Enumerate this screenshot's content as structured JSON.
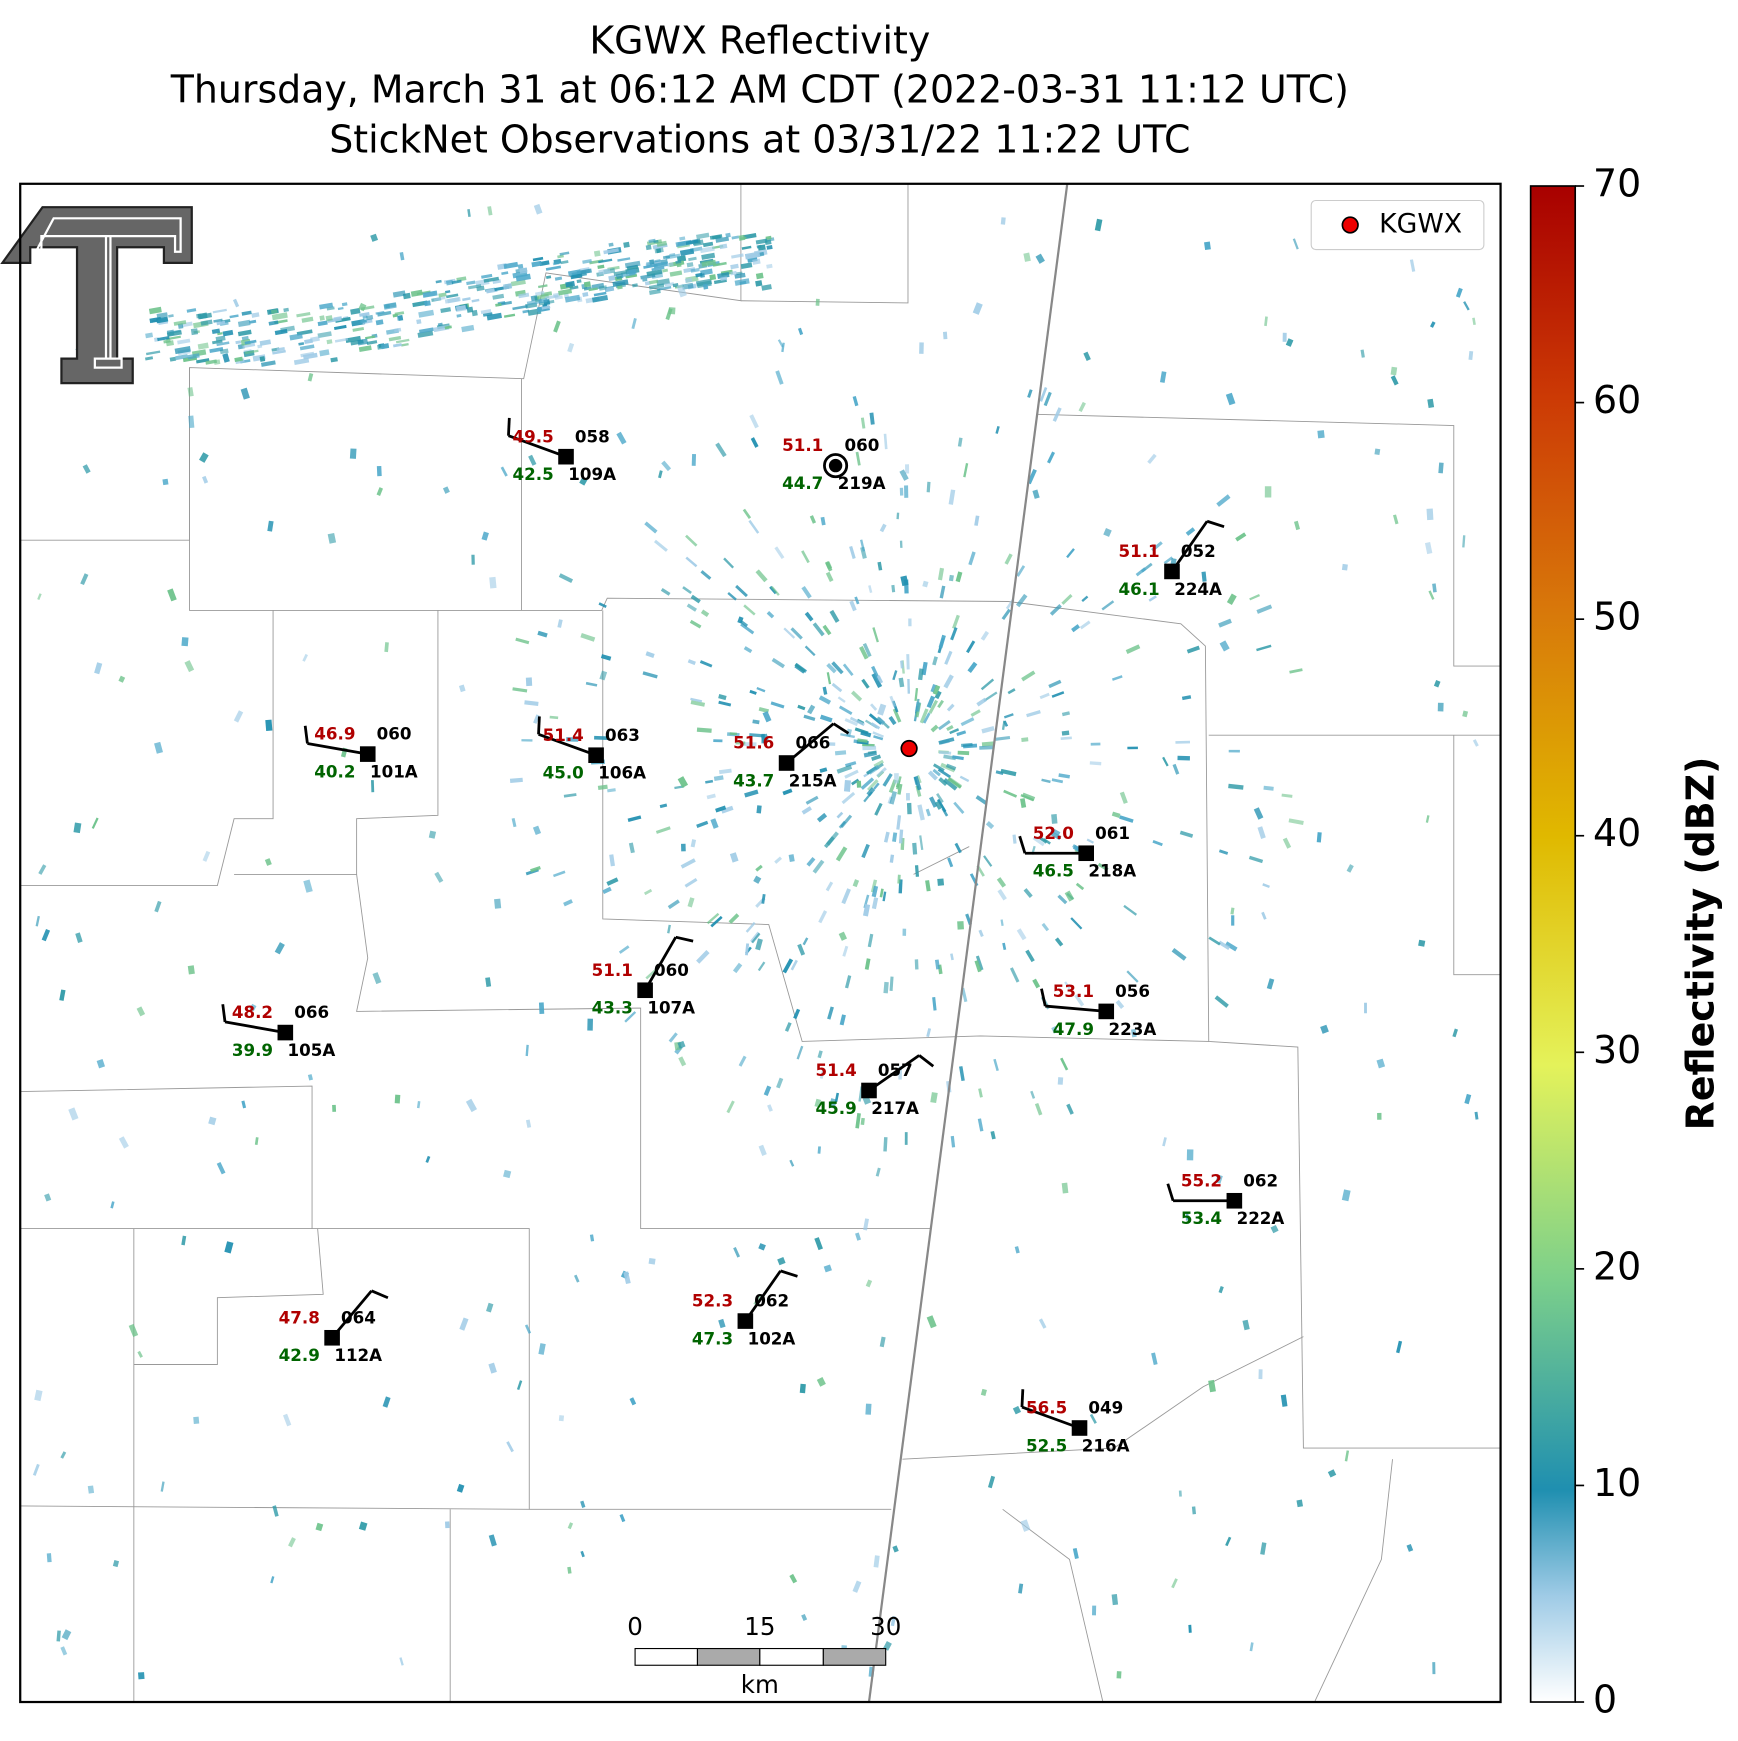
{
  "title": [
    "KGWX Reflectivity",
    "Thursday, March 31 at 06:12 AM CDT (2022-03-31 11:12 UTC)",
    "StickNet Observations at 03/31/22 11:22 UTC"
  ],
  "legend": "KGWX",
  "colorbar": {
    "label": "Reflectivity (dBZ)",
    "lim": [
      0,
      70
    ],
    "ticks": [
      0,
      10,
      20,
      30,
      40,
      50,
      60,
      70
    ]
  },
  "scale_bar": {
    "labels": [
      "0",
      "15",
      "30"
    ],
    "unit": "km"
  },
  "stations": [
    {
      "id": "109A",
      "temperature": "49.5",
      "dewpoint": "42.5",
      "code": "058"
    },
    {
      "id": "219A",
      "temperature": "51.1",
      "dewpoint": "44.7",
      "code": "060"
    },
    {
      "id": "224A",
      "temperature": "51.1",
      "dewpoint": "46.1",
      "code": "052"
    },
    {
      "id": "101A",
      "temperature": "46.9",
      "dewpoint": "40.2",
      "code": "060"
    },
    {
      "id": "106A",
      "temperature": "51.4",
      "dewpoint": "45.0",
      "code": "063"
    },
    {
      "id": "215A",
      "temperature": "51.6",
      "dewpoint": "43.7",
      "code": "066"
    },
    {
      "id": "218A",
      "temperature": "52.0",
      "dewpoint": "46.5",
      "code": "061"
    },
    {
      "id": "107A",
      "temperature": "51.1",
      "dewpoint": "43.3",
      "code": "060"
    },
    {
      "id": "105A",
      "temperature": "48.2",
      "dewpoint": "39.9",
      "code": "066"
    },
    {
      "id": "223A",
      "temperature": "53.1",
      "dewpoint": "47.9",
      "code": "056"
    },
    {
      "id": "217A",
      "temperature": "51.4",
      "dewpoint": "45.9",
      "code": "057"
    },
    {
      "id": "222A",
      "temperature": "55.2",
      "dewpoint": "53.4",
      "code": "062"
    },
    {
      "id": "112A",
      "temperature": "47.8",
      "dewpoint": "42.9",
      "code": "064"
    },
    {
      "id": "102A",
      "temperature": "52.3",
      "dewpoint": "47.3",
      "code": "062"
    },
    {
      "id": "216A",
      "temperature": "56.5",
      "dewpoint": "52.5",
      "code": "049"
    }
  ]
}
